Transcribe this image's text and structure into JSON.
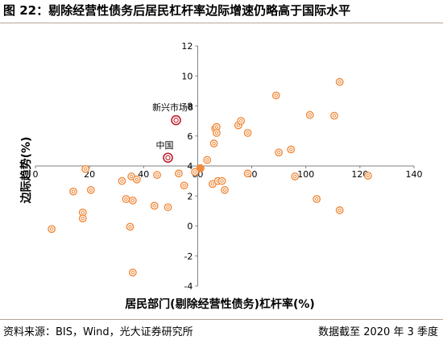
{
  "header": {
    "title": "图 22：剔除经营性债务后居民杠杆率边际增速仍略高于国际水平"
  },
  "footer": {
    "source": "资料来源：BIS，Wind，光大证券研究所",
    "note": "数据截至 2020 年 3 季度"
  },
  "chart_data": {
    "type": "scatter",
    "xlabel": "居民部门(剔除经营性债务)杠杆率(%)",
    "ylabel": "边际趋势(%)",
    "xlim": [
      0,
      140
    ],
    "ylim": [
      -4,
      12
    ],
    "xticks": [
      0,
      20,
      40,
      60,
      80,
      100,
      120,
      140
    ],
    "yticks": [
      -4,
      -2,
      0,
      2,
      4,
      6,
      8,
      10,
      12
    ],
    "grid": false,
    "colors": {
      "others": "#f08a3c",
      "highlight": "#c0202a",
      "filled": "#f08a3c"
    },
    "points": [
      {
        "x": 6,
        "y": -0.2
      },
      {
        "x": 14,
        "y": 2.3
      },
      {
        "x": 17.5,
        "y": 0.9
      },
      {
        "x": 17.5,
        "y": 0.5
      },
      {
        "x": 18.5,
        "y": 3.8
      },
      {
        "x": 20.5,
        "y": 2.4
      },
      {
        "x": 32,
        "y": 3.0
      },
      {
        "x": 33.5,
        "y": 1.8
      },
      {
        "x": 35,
        "y": -0.05
      },
      {
        "x": 35.5,
        "y": 3.3
      },
      {
        "x": 36,
        "y": 1.7
      },
      {
        "x": 36,
        "y": -3.1
      },
      {
        "x": 37.5,
        "y": 3.1
      },
      {
        "x": 44,
        "y": 1.35
      },
      {
        "x": 45,
        "y": 3.4
      },
      {
        "x": 49,
        "y": 1.25
      },
      {
        "x": 53,
        "y": 3.5
      },
      {
        "x": 55,
        "y": 2.7
      },
      {
        "x": 59,
        "y": 3.6
      },
      {
        "x": 63.5,
        "y": 4.4
      },
      {
        "x": 65.5,
        "y": 2.8
      },
      {
        "x": 66,
        "y": 5.5
      },
      {
        "x": 66.5,
        "y": 6.5
      },
      {
        "x": 67,
        "y": 6.6
      },
      {
        "x": 67,
        "y": 6.2
      },
      {
        "x": 67.5,
        "y": 3.0
      },
      {
        "x": 69,
        "y": 3.0
      },
      {
        "x": 70,
        "y": 2.4
      },
      {
        "x": 75,
        "y": 6.7
      },
      {
        "x": 76,
        "y": 7.0
      },
      {
        "x": 78.5,
        "y": 6.2
      },
      {
        "x": 78.5,
        "y": 3.5
      },
      {
        "x": 89,
        "y": 8.7
      },
      {
        "x": 90,
        "y": 4.9
      },
      {
        "x": 94.5,
        "y": 5.1
      },
      {
        "x": 96,
        "y": 3.3
      },
      {
        "x": 101.5,
        "y": 7.4
      },
      {
        "x": 104,
        "y": 1.8
      },
      {
        "x": 110.5,
        "y": 7.35
      },
      {
        "x": 112.5,
        "y": 9.6
      },
      {
        "x": 112.5,
        "y": 1.05
      },
      {
        "x": 123,
        "y": 3.35
      }
    ],
    "filled_point": {
      "x": 61,
      "y": 3.85
    },
    "highlights": [
      {
        "label": "新兴市场8",
        "x": 52,
        "y": 7.05
      },
      {
        "label": "中国",
        "x": 49,
        "y": 4.55
      }
    ]
  }
}
